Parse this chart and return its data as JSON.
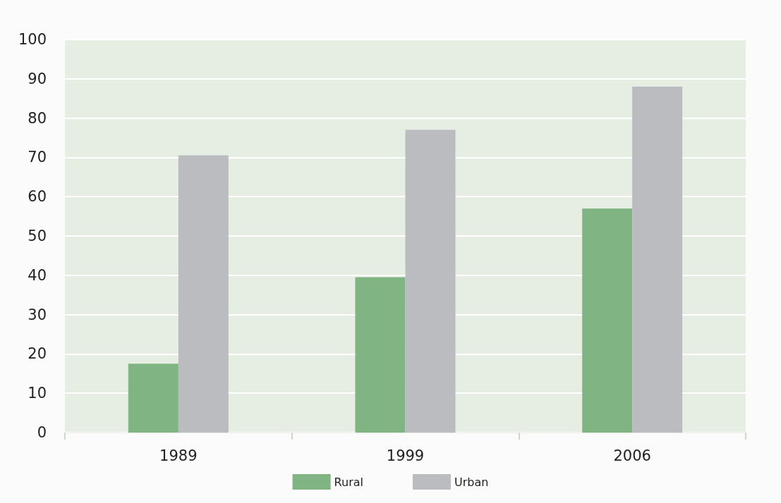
{
  "chart_data": {
    "type": "bar",
    "categories": [
      "1989",
      "1999",
      "2006"
    ],
    "series": [
      {
        "name": "Rural",
        "color": "#80b482",
        "values": [
          17.5,
          39.5,
          57
        ]
      },
      {
        "name": "Urban",
        "color": "#bbbcc0",
        "values": [
          70.5,
          77,
          88
        ]
      }
    ],
    "ylim": [
      0,
      100
    ],
    "yticks": [
      0,
      10,
      20,
      30,
      40,
      50,
      60,
      70,
      80,
      90,
      100
    ],
    "grid": "y",
    "legend": "bottom"
  }
}
